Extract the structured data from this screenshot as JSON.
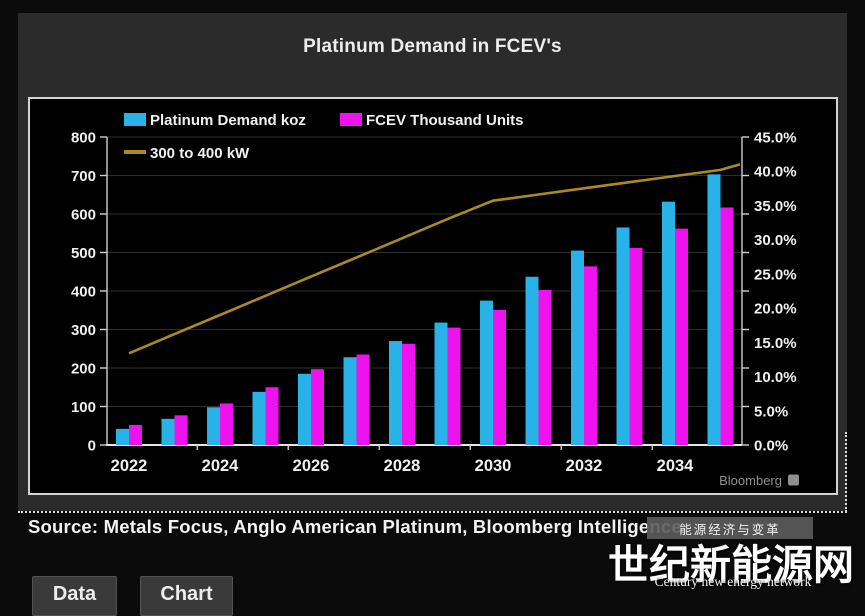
{
  "header": {
    "title": "Platinum Demand in FCEV's"
  },
  "chart_data": {
    "type": "combo",
    "title": "Platinum Demand in FCEV's",
    "categories": [
      "2022",
      "2023",
      "2024",
      "2025",
      "2026",
      "2027",
      "2028",
      "2029",
      "2030",
      "2031",
      "2032",
      "2033",
      "2034",
      "2035"
    ],
    "series": [
      {
        "name": "Platinum Demand koz",
        "type": "bar",
        "axis": "left",
        "color": "#29b2e8",
        "values": [
          42,
          68,
          98,
          138,
          185,
          228,
          270,
          318,
          375,
          437,
          505,
          565,
          632,
          703
        ]
      },
      {
        "name": "FCEV Thousand Units",
        "type": "bar",
        "axis": "left",
        "color": "#ee13ee",
        "values": [
          52,
          77,
          108,
          150,
          197,
          235,
          263,
          305,
          351,
          403,
          464,
          512,
          562,
          617
        ]
      },
      {
        "name": "300 to 400 kW",
        "type": "line",
        "axis": "right",
        "color": "#ab8a23",
        "values": [
          13.4,
          16.2,
          19.0,
          21.8,
          24.6,
          27.4,
          30.2,
          33.0,
          35.7,
          36.6,
          37.5,
          38.4,
          39.3,
          40.2
        ],
        "edge_value": 41.0
      }
    ],
    "left_axis": {
      "min": 0,
      "max": 800,
      "step": 100,
      "ticks": [
        "800",
        "700",
        "600",
        "500",
        "400",
        "300",
        "200",
        "100",
        "0"
      ]
    },
    "right_axis": {
      "min": 0,
      "max": 45,
      "step": 5,
      "format": "percent",
      "ticks": [
        "45.0%",
        "40.0%",
        "35.0%",
        "30.0%",
        "25.0%",
        "20.0%",
        "15.0%",
        "10.0%",
        "5.0%",
        "0.0%"
      ]
    },
    "x_tick_labels": [
      "2022",
      "2024",
      "2026",
      "2028",
      "2030",
      "2032",
      "2034"
    ],
    "legend_position": "top-left",
    "grid": true,
    "branding": "Bloomberg"
  },
  "source": {
    "text": "Source: Metals Focus, Anglo American Platinum, Bloomberg Intelligence"
  },
  "watermark": {
    "badge": "能源经济与变革",
    "title": "世纪新能源网",
    "subtitle": "Century new energy network"
  },
  "footer": {
    "buttons": [
      {
        "label": "Data"
      },
      {
        "label": "Chart"
      }
    ]
  }
}
